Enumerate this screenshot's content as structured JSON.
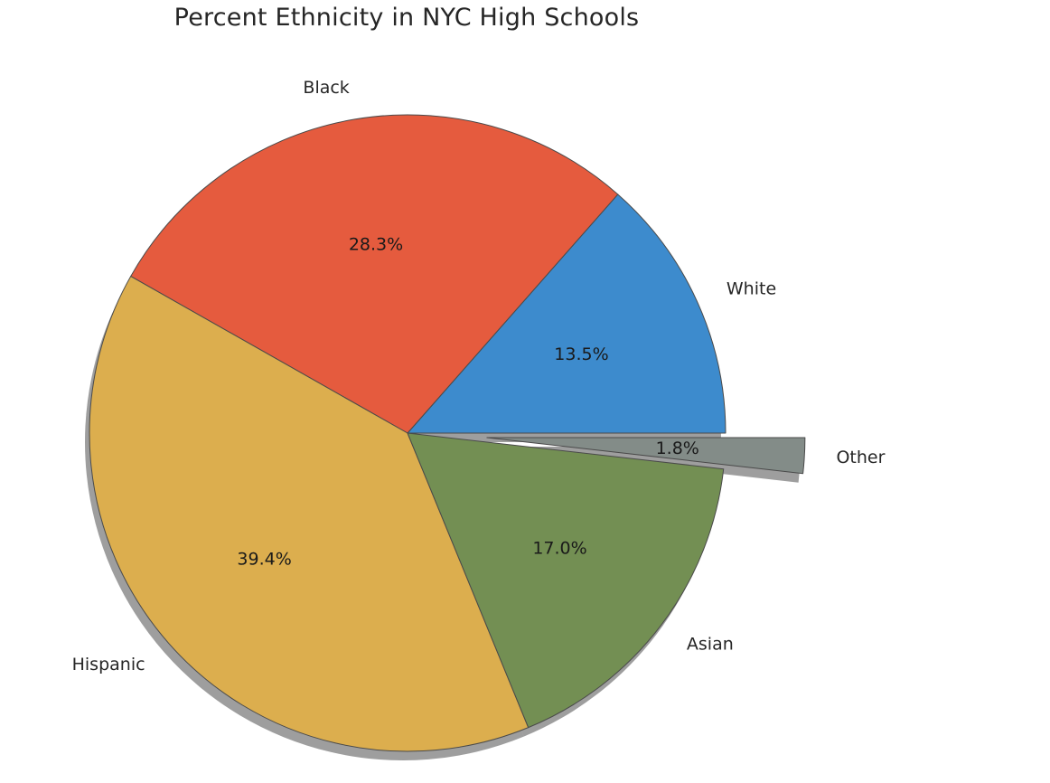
{
  "chart_data": {
    "type": "pie",
    "title": "Percent Ethnicity in NYC High Schools",
    "categories": [
      "White",
      "Black",
      "Hispanic",
      "Asian",
      "Other"
    ],
    "values": [
      13.5,
      28.3,
      39.4,
      17.0,
      1.8
    ],
    "value_labels": [
      "13.5%",
      "28.3%",
      "39.4%",
      "17.0%",
      "1.8%"
    ],
    "colors": [
      "#3d8bcd",
      "#e55b3e",
      "#dcae4e",
      "#738f53",
      "#838c88"
    ],
    "exploded": [
      false,
      false,
      false,
      false,
      true
    ],
    "shadow": true,
    "start_angle_deg": 0,
    "direction": "counterclockwise"
  }
}
